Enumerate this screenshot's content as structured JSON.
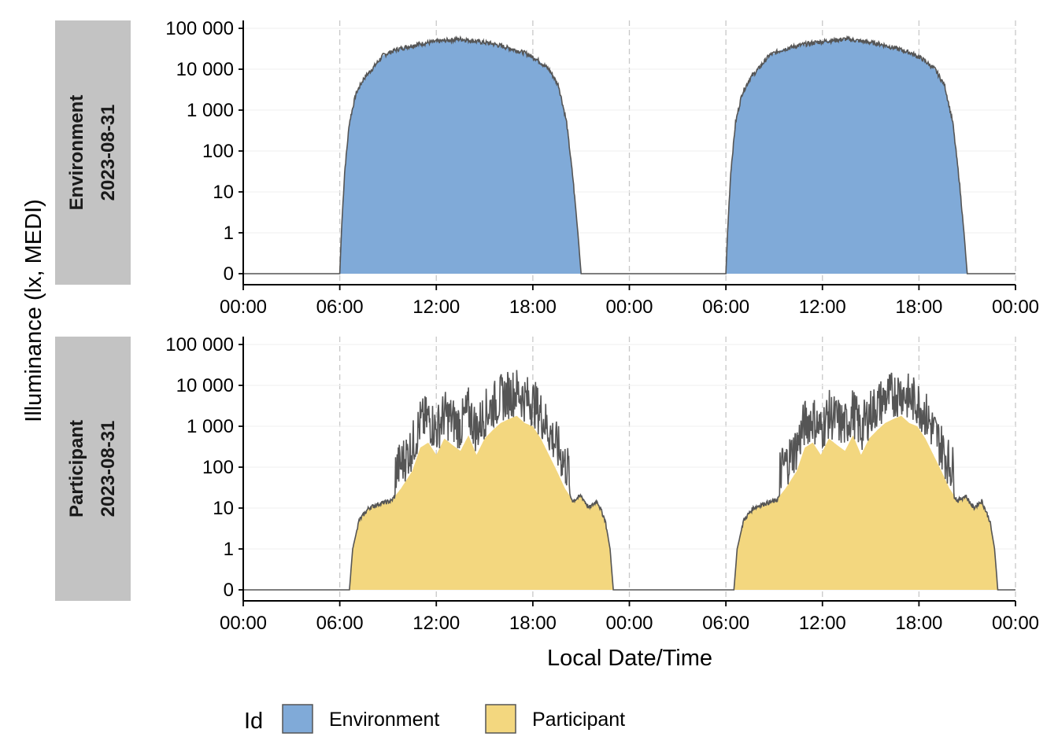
{
  "chart_data": {
    "type": "area",
    "ylabel": "Illuminance (lx, MEDI)",
    "xlabel": "Local Date/Time",
    "y_scale": "symlog",
    "y_ticks": [
      0,
      1,
      10,
      100,
      1000,
      10000,
      100000
    ],
    "y_tick_labels": [
      "0",
      "1",
      "10",
      "100",
      "1 000",
      "10 000",
      "100 000"
    ],
    "x_ticks": [
      "00:00",
      "06:00",
      "12:00",
      "18:00",
      "00:00",
      "06:00",
      "12:00",
      "18:00",
      "00:00"
    ],
    "x_range_hours": [
      0,
      48
    ],
    "grid": "dashed vertical lines at 6-hour intervals",
    "legend": {
      "title": "Id",
      "position": "bottom",
      "entries": [
        {
          "label": "Environment",
          "color": "#80aad8"
        },
        {
          "label": "Participant",
          "color": "#f3d77f"
        }
      ]
    },
    "line_color": "#555555",
    "panels": [
      {
        "id": "Environment",
        "strip_lines": [
          "Environment",
          "2023-08-31"
        ],
        "fill": "#80aad8",
        "series": {
          "name": "Environment",
          "hours": [
            0,
            6.0,
            6.1,
            6.3,
            6.6,
            7.0,
            7.5,
            8.0,
            8.7,
            9.5,
            10.5,
            11.5,
            12.5,
            13.5,
            14.5,
            15.5,
            16.5,
            17.5,
            18.2,
            19.0,
            19.6,
            20.1,
            20.5,
            20.8,
            21.0,
            24.0,
            30.0,
            30.1,
            30.3,
            30.6,
            31.0,
            31.5,
            32.0,
            32.7,
            33.5,
            34.5,
            35.5,
            36.5,
            37.5,
            38.5,
            39.5,
            40.5,
            41.5,
            42.2,
            43.0,
            43.6,
            44.1,
            44.5,
            44.8,
            45.0,
            48.0
          ],
          "lux": [
            0,
            0,
            1,
            30,
            500,
            2500,
            6000,
            10000,
            22000,
            30000,
            38000,
            45000,
            50000,
            55000,
            48000,
            42000,
            33000,
            25000,
            18000,
            10000,
            4000,
            500,
            20,
            1,
            0,
            0,
            0,
            1,
            30,
            500,
            2500,
            6000,
            10000,
            22000,
            30000,
            38000,
            45000,
            50000,
            55000,
            48000,
            42000,
            33000,
            25000,
            18000,
            10000,
            4000,
            500,
            20,
            1,
            0,
            0
          ]
        }
      },
      {
        "id": "Participant",
        "strip_lines": [
          "Participant",
          "2023-08-31"
        ],
        "fill": "#f3d77f",
        "series": {
          "name": "Participant",
          "hours": [
            0,
            6.6,
            6.8,
            7.2,
            7.8,
            8.5,
            9.2,
            9.8,
            10.5,
            11.0,
            11.5,
            12.0,
            12.5,
            13.0,
            13.5,
            14.0,
            14.5,
            15.0,
            15.5,
            16.0,
            16.5,
            17.0,
            17.5,
            18.0,
            18.5,
            19.0,
            19.5,
            20.0,
            20.5,
            21.0,
            21.5,
            22.0,
            22.5,
            22.8,
            23.0,
            23.2,
            24.0,
            30.5,
            30.7,
            31.1,
            31.7,
            32.4,
            33.1,
            33.7,
            34.4,
            34.9,
            35.4,
            35.9,
            36.4,
            36.9,
            37.4,
            37.9,
            38.4,
            38.9,
            39.4,
            39.9,
            40.4,
            40.9,
            41.4,
            41.9,
            42.4,
            42.9,
            43.4,
            43.9,
            44.4,
            44.9,
            45.4,
            45.9,
            46.4,
            46.7,
            46.9,
            47.1,
            48.0
          ],
          "lux": [
            0,
            0,
            1,
            5,
            10,
            13,
            15,
            30,
            80,
            300,
            400,
            200,
            500,
            350,
            250,
            600,
            200,
            500,
            800,
            1200,
            1500,
            1800,
            1200,
            1000,
            500,
            200,
            80,
            30,
            15,
            20,
            10,
            15,
            5,
            1,
            0,
            0,
            0,
            0,
            1,
            5,
            10,
            13,
            15,
            30,
            80,
            300,
            400,
            200,
            500,
            350,
            250,
            600,
            200,
            500,
            800,
            1200,
            1500,
            1800,
            1200,
            1000,
            500,
            200,
            80,
            30,
            15,
            20,
            10,
            15,
            5,
            1,
            0,
            0,
            0
          ]
        }
      }
    ]
  }
}
